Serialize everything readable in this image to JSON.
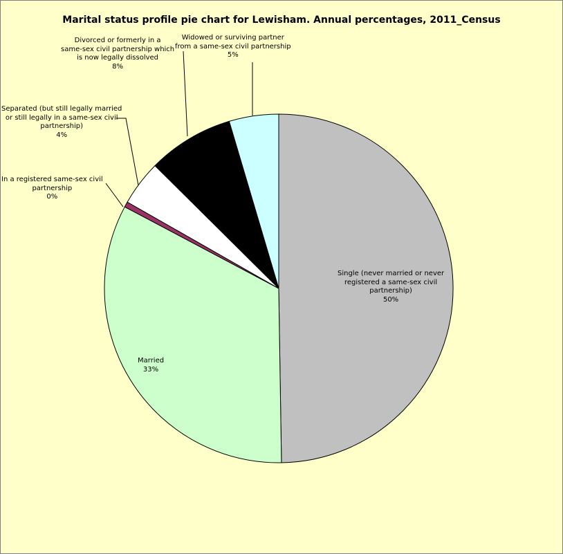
{
  "chart_data": {
    "type": "pie",
    "title": "Marital status profile pie chart for Lewisham. Annual percentages, 2011_Census",
    "slices": [
      {
        "label": [
          "Single (never married or never",
          "registered a same-sex civil",
          "partnership)"
        ],
        "pct_label": "50%",
        "value": 49.9,
        "color": "#c0c0c0"
      },
      {
        "label": [
          "Married"
        ],
        "pct_label": "33%",
        "value": 33.1,
        "color": "#ccffcc"
      },
      {
        "label": [
          "In a registered same-sex civil",
          "partnership"
        ],
        "pct_label": "0%",
        "value": 0.5,
        "color": "#993366"
      },
      {
        "label": [
          "Separated (but still legally married",
          "or still legally in a same-sex civil",
          "partnership)"
        ],
        "pct_label": "4%",
        "value": 4.2,
        "color": "#ffffff"
      },
      {
        "label": [
          "Divorced or formerly in a",
          "same-sex civil partnership which",
          "is now legally dissolved"
        ],
        "pct_label": "8%",
        "value": 8.0,
        "color": "#000000"
      },
      {
        "label": [
          "Widowed or surviving partner",
          "from a same-sex civil partnership"
        ],
        "pct_label": "5%",
        "value": 4.6,
        "color": "#ccffff"
      }
    ],
    "start": "12 o'clock",
    "direction": "clockwise",
    "background_color": "#ffffc9",
    "slice_border_color": "#000000",
    "legend": "none"
  }
}
